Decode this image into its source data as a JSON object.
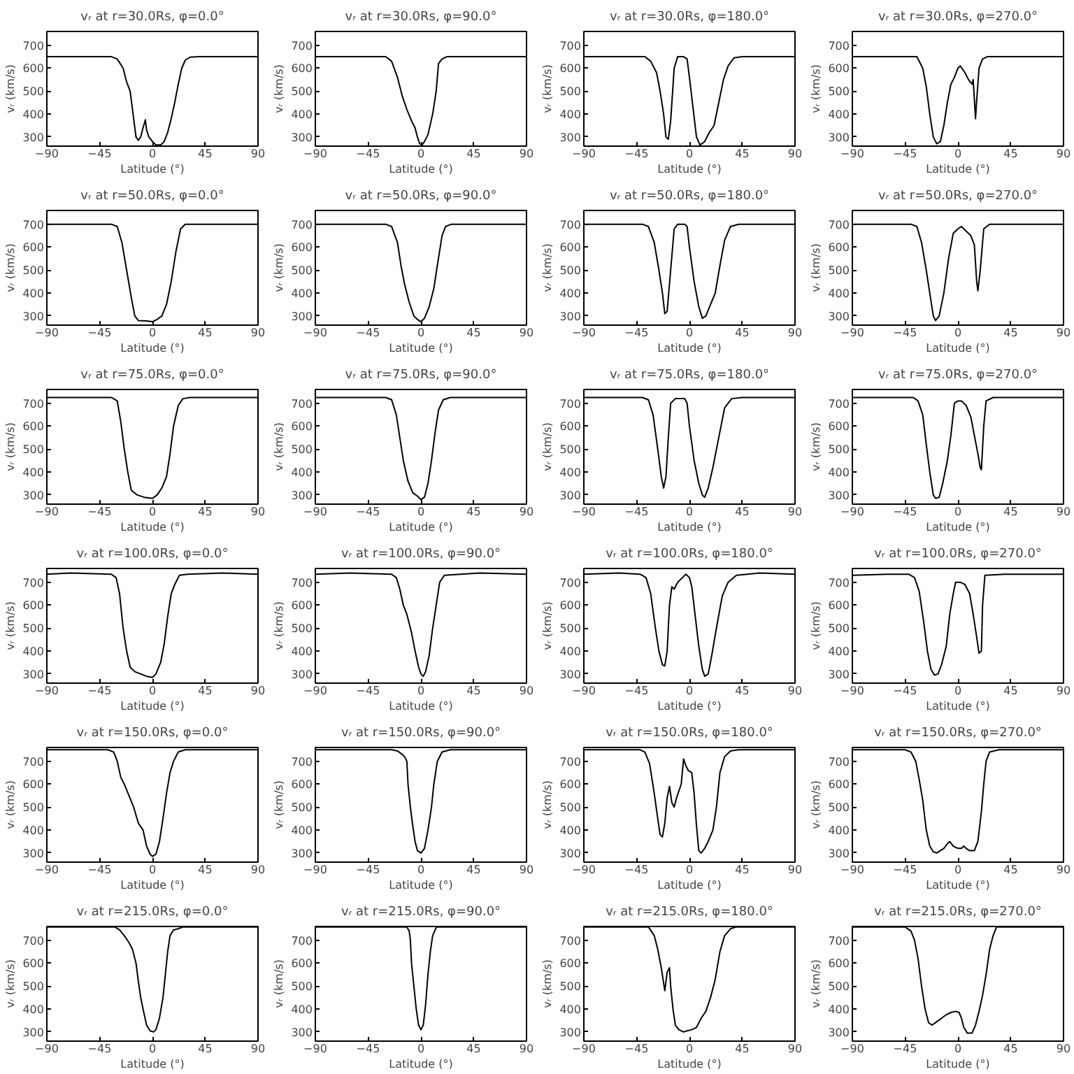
{
  "chart_data": [
    {
      "type": "line",
      "title": "vᵣ at r=30.0Rs, φ=0.0°",
      "xlabel": "Latitude (°)",
      "ylabel": "vᵣ (km/s)",
      "color": "#000000",
      "xlim": [
        -90,
        90
      ],
      "ylim": [
        260,
        760
      ],
      "xticks": [
        -90,
        -45,
        0,
        45,
        90
      ],
      "yticks": [
        300,
        400,
        500,
        600,
        700
      ],
      "x": [
        -90,
        -35,
        -30,
        -25,
        -22,
        -19,
        -16,
        -14,
        -12,
        -10,
        -8,
        -6,
        -5,
        -3,
        0,
        3,
        7,
        10,
        13,
        16,
        19,
        22,
        25,
        28,
        32,
        40,
        90
      ],
      "values": [
        650,
        650,
        640,
        600,
        540,
        500,
        380,
        300,
        285,
        300,
        340,
        375,
        330,
        300,
        280,
        265,
        265,
        280,
        320,
        380,
        450,
        530,
        600,
        635,
        648,
        650,
        650
      ]
    },
    {
      "type": "line",
      "title": "vᵣ at r=30.0Rs, φ=90.0°",
      "xlabel": "Latitude (°)",
      "ylabel": "vᵣ (km/s)",
      "color": "#000000",
      "xlim": [
        -90,
        90
      ],
      "ylim": [
        260,
        760
      ],
      "xticks": [
        -90,
        -45,
        0,
        45,
        90
      ],
      "yticks": [
        300,
        400,
        500,
        600,
        700
      ],
      "x": [
        -90,
        -30,
        -25,
        -20,
        -16,
        -12,
        -8,
        -5,
        -3,
        -1,
        1,
        3,
        6,
        10,
        13,
        15,
        18,
        22,
        90
      ],
      "values": [
        650,
        650,
        630,
        560,
        480,
        420,
        370,
        340,
        300,
        270,
        265,
        280,
        310,
        400,
        500,
        620,
        640,
        650,
        650
      ]
    },
    {
      "type": "line",
      "title": "vᵣ at r=30.0Rs, φ=180.0°",
      "xlabel": "Latitude (°)",
      "ylabel": "vᵣ (km/s)",
      "color": "#000000",
      "xlim": [
        -90,
        90
      ],
      "ylim": [
        260,
        760
      ],
      "xticks": [
        -90,
        -45,
        0,
        45,
        90
      ],
      "yticks": [
        300,
        400,
        500,
        600,
        700
      ],
      "x": [
        -90,
        -38,
        -33,
        -28,
        -25,
        -22,
        -20,
        -18,
        -16,
        -13,
        -10,
        -5,
        -2,
        0,
        3,
        6,
        9,
        13,
        17,
        21,
        25,
        29,
        33,
        38,
        45,
        90
      ],
      "values": [
        650,
        650,
        630,
        580,
        500,
        400,
        300,
        290,
        370,
        600,
        650,
        650,
        640,
        560,
        430,
        300,
        265,
        280,
        320,
        350,
        450,
        550,
        610,
        645,
        650,
        650
      ]
    },
    {
      "type": "line",
      "title": "vᵣ at r=30.0Rs, φ=270.0°",
      "xlabel": "Latitude (°)",
      "ylabel": "vᵣ (km/s)",
      "color": "#000000",
      "xlim": [
        -90,
        90
      ],
      "ylim": [
        260,
        760
      ],
      "xticks": [
        -90,
        -45,
        0,
        45,
        90
      ],
      "yticks": [
        300,
        400,
        500,
        600,
        700
      ],
      "x": [
        -90,
        -35,
        -30,
        -27,
        -24,
        -21,
        -18,
        -15,
        -12,
        -9,
        -6,
        -3,
        0,
        2,
        6,
        9,
        12,
        13,
        15,
        16,
        18,
        21,
        25,
        90
      ],
      "values": [
        650,
        650,
        600,
        520,
        400,
        300,
        270,
        280,
        350,
        450,
        530,
        560,
        600,
        610,
        580,
        550,
        530,
        550,
        380,
        460,
        600,
        640,
        650,
        650
      ]
    },
    {
      "type": "line",
      "title": "vᵣ at r=50.0Rs, φ=0.0°",
      "xlabel": "Latitude (°)",
      "ylabel": "vᵣ (km/s)",
      "color": "#000000",
      "xlim": [
        -90,
        90
      ],
      "ylim": [
        260,
        760
      ],
      "xticks": [
        -90,
        -45,
        0,
        45,
        90
      ],
      "yticks": [
        300,
        400,
        500,
        600,
        700
      ],
      "x": [
        -90,
        -35,
        -30,
        -26,
        -22,
        -18,
        -15,
        -12,
        -5,
        0,
        4,
        8,
        12,
        16,
        20,
        24,
        28,
        90
      ],
      "values": [
        700,
        700,
        690,
        620,
        500,
        380,
        300,
        280,
        278,
        275,
        285,
        300,
        350,
        450,
        580,
        680,
        700,
        700
      ]
    },
    {
      "type": "line",
      "title": "vᵣ at r=50.0Rs, φ=90.0°",
      "xlabel": "Latitude (°)",
      "ylabel": "vᵣ (km/s)",
      "color": "#000000",
      "xlim": [
        -90,
        90
      ],
      "ylim": [
        260,
        760
      ],
      "xticks": [
        -90,
        -45,
        0,
        45,
        90
      ],
      "yticks": [
        300,
        400,
        500,
        600,
        700
      ],
      "x": [
        -90,
        -30,
        -25,
        -20,
        -17,
        -14,
        -10,
        -6,
        -3,
        0,
        3,
        7,
        11,
        14,
        18,
        21,
        26,
        90
      ],
      "values": [
        700,
        700,
        690,
        620,
        520,
        440,
        360,
        300,
        285,
        275,
        290,
        340,
        420,
        520,
        650,
        690,
        700,
        700
      ]
    },
    {
      "type": "line",
      "title": "vᵣ at r=50.0Rs, φ=180.0°",
      "xlabel": "Latitude (°)",
      "ylabel": "vᵣ (km/s)",
      "color": "#000000",
      "xlim": [
        -90,
        90
      ],
      "ylim": [
        260,
        760
      ],
      "xticks": [
        -90,
        -45,
        0,
        45,
        90
      ],
      "yticks": [
        300,
        400,
        500,
        600,
        700
      ],
      "x": [
        -90,
        -40,
        -35,
        -30,
        -26,
        -23,
        -21,
        -19,
        -16,
        -13,
        -10,
        -4,
        -2,
        0,
        4,
        8,
        11,
        14,
        18,
        22,
        26,
        30,
        35,
        42,
        90
      ],
      "values": [
        700,
        700,
        690,
        620,
        500,
        400,
        310,
        320,
        500,
        680,
        700,
        700,
        690,
        600,
        450,
        340,
        290,
        300,
        350,
        400,
        520,
        630,
        690,
        700,
        700
      ]
    },
    {
      "type": "line",
      "title": "vᵣ at r=50.0Rs, φ=270.0°",
      "xlabel": "Latitude (°)",
      "ylabel": "vᵣ (km/s)",
      "color": "#000000",
      "xlim": [
        -90,
        90
      ],
      "ylim": [
        260,
        760
      ],
      "xticks": [
        -90,
        -45,
        0,
        45,
        90
      ],
      "yticks": [
        300,
        400,
        500,
        600,
        700
      ],
      "x": [
        -90,
        -40,
        -35,
        -31,
        -27,
        -24,
        -21,
        -19,
        -16,
        -12,
        -8,
        -4,
        0,
        3,
        7,
        11,
        14,
        16,
        17,
        19,
        22,
        27,
        90
      ],
      "values": [
        700,
        700,
        690,
        620,
        500,
        400,
        300,
        280,
        300,
        400,
        550,
        660,
        680,
        690,
        670,
        650,
        610,
        450,
        410,
        500,
        680,
        700,
        700
      ]
    },
    {
      "type": "line",
      "title": "vᵣ at r=75.0Rs, φ=0.0°",
      "xlabel": "Latitude (°)",
      "ylabel": "vᵣ (km/s)",
      "color": "#000000",
      "xlim": [
        -90,
        90
      ],
      "ylim": [
        260,
        760
      ],
      "xticks": [
        -90,
        -45,
        0,
        45,
        90
      ],
      "yticks": [
        300,
        400,
        500,
        600,
        700
      ],
      "x": [
        -90,
        -35,
        -30,
        -27,
        -24,
        -21,
        -18,
        -13,
        -7,
        0,
        4,
        8,
        12,
        15,
        18,
        22,
        26,
        32,
        90
      ],
      "values": [
        725,
        725,
        710,
        620,
        500,
        400,
        320,
        300,
        290,
        285,
        300,
        330,
        380,
        480,
        600,
        690,
        720,
        725,
        725
      ]
    },
    {
      "type": "line",
      "title": "vᵣ at r=75.0Rs, φ=90.0°",
      "xlabel": "Latitude (°)",
      "ylabel": "vᵣ (km/s)",
      "color": "#000000",
      "xlim": [
        -90,
        90
      ],
      "ylim": [
        260,
        760
      ],
      "xticks": [
        -90,
        -45,
        0,
        45,
        90
      ],
      "yticks": [
        300,
        400,
        500,
        600,
        700
      ],
      "x": [
        -90,
        -30,
        -25,
        -21,
        -18,
        -15,
        -11,
        -7,
        -3,
        0,
        3,
        6,
        9,
        12,
        15,
        19,
        25,
        90
      ],
      "values": [
        725,
        725,
        715,
        650,
        550,
        450,
        360,
        310,
        295,
        280,
        290,
        350,
        450,
        570,
        670,
        715,
        725,
        725
      ]
    },
    {
      "type": "line",
      "title": "vᵣ at r=75.0Rs, φ=180.0°",
      "xlabel": "Latitude (°)",
      "ylabel": "vᵣ (km/s)",
      "color": "#000000",
      "xlim": [
        -90,
        90
      ],
      "ylim": [
        260,
        760
      ],
      "xticks": [
        -90,
        -45,
        0,
        45,
        90
      ],
      "yticks": [
        300,
        400,
        500,
        600,
        700
      ],
      "x": [
        -90,
        -40,
        -35,
        -31,
        -27,
        -24,
        -22,
        -20,
        -18,
        -16,
        -12,
        -4,
        -2,
        0,
        4,
        8,
        11,
        13,
        16,
        20,
        25,
        30,
        36,
        45,
        90
      ],
      "values": [
        725,
        725,
        715,
        650,
        500,
        380,
        330,
        380,
        550,
        700,
        720,
        720,
        700,
        600,
        450,
        350,
        300,
        290,
        330,
        420,
        550,
        680,
        720,
        725,
        725
      ]
    },
    {
      "type": "line",
      "title": "vᵣ at r=75.0Rs, φ=270.0°",
      "xlabel": "Latitude (°)",
      "ylabel": "vᵣ (km/s)",
      "color": "#000000",
      "xlim": [
        -90,
        90
      ],
      "ylim": [
        260,
        760
      ],
      "xticks": [
        -90,
        -45,
        0,
        45,
        90
      ],
      "yticks": [
        300,
        400,
        500,
        600,
        700
      ],
      "x": [
        -90,
        -38,
        -34,
        -30,
        -27,
        -24,
        -21,
        -19,
        -16,
        -13,
        -9,
        -6,
        -3,
        0,
        3,
        7,
        11,
        14,
        17,
        19,
        20,
        22,
        24,
        30,
        90
      ],
      "values": [
        725,
        725,
        710,
        650,
        520,
        400,
        300,
        285,
        290,
        350,
        450,
        560,
        700,
        710,
        710,
        690,
        640,
        560,
        480,
        420,
        410,
        600,
        710,
        725,
        725
      ]
    },
    {
      "type": "line",
      "title": "vᵣ at r=100.0Rs, φ=0.0°",
      "xlabel": "Latitude (°)",
      "ylabel": "vᵣ (km/s)",
      "color": "#000000",
      "xlim": [
        -90,
        90
      ],
      "ylim": [
        260,
        760
      ],
      "xticks": [
        -90,
        -45,
        0,
        45,
        90
      ],
      "yticks": [
        300,
        400,
        500,
        600,
        700
      ],
      "x": [
        -90,
        -70,
        -35,
        -31,
        -28,
        -25,
        -22,
        -19,
        -15,
        -10,
        -5,
        0,
        3,
        7,
        10,
        13,
        16,
        19,
        23,
        30,
        60,
        90
      ],
      "values": [
        735,
        740,
        735,
        720,
        650,
        500,
        400,
        330,
        310,
        300,
        290,
        285,
        300,
        350,
        430,
        550,
        650,
        690,
        730,
        735,
        740,
        735
      ]
    },
    {
      "type": "line",
      "title": "vᵣ at r=100.0Rs, φ=90.0°",
      "xlabel": "Latitude (°)",
      "ylabel": "vᵣ (km/s)",
      "color": "#000000",
      "xlim": [
        -90,
        90
      ],
      "ylim": [
        260,
        760
      ],
      "xticks": [
        -90,
        -45,
        0,
        45,
        90
      ],
      "yticks": [
        300,
        400,
        500,
        600,
        700
      ],
      "x": [
        -90,
        -60,
        -25,
        -21,
        -18,
        -15,
        -12,
        -8,
        -5,
        -2,
        0,
        2,
        4,
        7,
        10,
        13,
        16,
        20,
        50,
        90
      ],
      "values": [
        735,
        740,
        735,
        720,
        670,
        600,
        560,
        480,
        400,
        330,
        300,
        290,
        310,
        380,
        500,
        600,
        700,
        730,
        740,
        735
      ]
    },
    {
      "type": "line",
      "title": "vᵣ at r=100.0Rs, φ=180.0°",
      "xlabel": "Latitude (°)",
      "ylabel": "vᵣ (km/s)",
      "color": "#000000",
      "xlim": [
        -90,
        90
      ],
      "ylim": [
        260,
        760
      ],
      "xticks": [
        -90,
        -45,
        0,
        45,
        90
      ],
      "yticks": [
        300,
        400,
        500,
        600,
        700
      ],
      "x": [
        -90,
        -60,
        -42,
        -37,
        -33,
        -29,
        -26,
        -23,
        -21,
        -19,
        -17,
        -15,
        -13,
        -10,
        -6,
        -3,
        0,
        2,
        5,
        8,
        11,
        13,
        16,
        19,
        23,
        28,
        33,
        40,
        60,
        90
      ],
      "values": [
        735,
        740,
        735,
        720,
        650,
        500,
        400,
        340,
        335,
        400,
        600,
        680,
        670,
        700,
        720,
        735,
        720,
        680,
        550,
        420,
        320,
        290,
        300,
        380,
        500,
        640,
        700,
        730,
        740,
        735
      ]
    },
    {
      "type": "line",
      "title": "vᵣ at r=100.0Rs, φ=270.0°",
      "xlabel": "Latitude (°)",
      "ylabel": "vᵣ (km/s)",
      "color": "#000000",
      "xlim": [
        -90,
        90
      ],
      "ylim": [
        260,
        760
      ],
      "xticks": [
        -90,
        -45,
        0,
        45,
        90
      ],
      "yticks": [
        300,
        400,
        500,
        600,
        700
      ],
      "x": [
        -90,
        -60,
        -42,
        -37,
        -33,
        -29,
        -26,
        -23,
        -20,
        -17,
        -14,
        -10,
        -7,
        -4,
        -2,
        2,
        6,
        10,
        13,
        16,
        18,
        20,
        21,
        23,
        40,
        90
      ],
      "values": [
        730,
        735,
        735,
        720,
        660,
        520,
        400,
        320,
        295,
        300,
        340,
        420,
        560,
        650,
        700,
        700,
        690,
        650,
        560,
        460,
        390,
        400,
        600,
        730,
        735,
        735
      ]
    },
    {
      "type": "line",
      "title": "vᵣ at r=150.0Rs, φ=0.0°",
      "xlabel": "Latitude (°)",
      "ylabel": "vᵣ (km/s)",
      "color": "#000000",
      "xlim": [
        -90,
        90
      ],
      "ylim": [
        260,
        760
      ],
      "xticks": [
        -90,
        -45,
        0,
        45,
        90
      ],
      "yticks": [
        300,
        400,
        500,
        600,
        700
      ],
      "x": [
        -90,
        -38,
        -33,
        -30,
        -27,
        -24,
        -20,
        -16,
        -12,
        -8,
        -5,
        -2,
        0,
        3,
        6,
        9,
        12,
        15,
        18,
        22,
        28,
        90
      ],
      "values": [
        750,
        750,
        740,
        700,
        630,
        600,
        550,
        500,
        430,
        400,
        330,
        295,
        285,
        295,
        350,
        450,
        560,
        650,
        700,
        740,
        750,
        750
      ]
    },
    {
      "type": "line",
      "title": "vᵣ at r=150.0Rs, φ=90.0°",
      "xlabel": "Latitude (°)",
      "ylabel": "vᵣ (km/s)",
      "color": "#000000",
      "xlim": [
        -90,
        90
      ],
      "ylim": [
        260,
        760
      ],
      "xticks": [
        -90,
        -45,
        0,
        45,
        90
      ],
      "yticks": [
        300,
        400,
        500,
        600,
        700
      ],
      "x": [
        -90,
        -25,
        -20,
        -16,
        -14,
        -12,
        -11,
        -9,
        -7,
        -5,
        -3,
        0,
        3,
        6,
        9,
        11,
        14,
        18,
        25,
        90
      ],
      "values": [
        750,
        750,
        745,
        730,
        720,
        700,
        600,
        500,
        420,
        350,
        310,
        300,
        320,
        400,
        500,
        600,
        700,
        740,
        750,
        750
      ]
    },
    {
      "type": "line",
      "title": "vᵣ at r=150.0Rs, φ=180.0°",
      "xlabel": "Latitude (°)",
      "ylabel": "vᵣ (km/s)",
      "color": "#000000",
      "xlim": [
        -90,
        90
      ],
      "ylim": [
        260,
        760
      ],
      "xticks": [
        -90,
        -45,
        0,
        45,
        90
      ],
      "yticks": [
        300,
        400,
        500,
        600,
        700
      ],
      "x": [
        -90,
        -42,
        -38,
        -34,
        -30,
        -27,
        -25,
        -23,
        -21,
        -19,
        -17,
        -15,
        -13,
        -11,
        -9,
        -7,
        -5,
        -3,
        -1,
        2,
        4,
        6,
        8,
        10,
        13,
        16,
        20,
        23,
        26,
        30,
        35,
        42,
        90
      ],
      "values": [
        750,
        750,
        740,
        690,
        560,
        450,
        380,
        370,
        430,
        540,
        590,
        520,
        500,
        540,
        570,
        600,
        710,
        680,
        660,
        650,
        560,
        420,
        310,
        300,
        320,
        350,
        400,
        500,
        650,
        720,
        745,
        750,
        750
      ]
    },
    {
      "type": "line",
      "title": "vᵣ at r=150.0Rs, φ=270.0°",
      "xlabel": "Latitude (°)",
      "ylabel": "vᵣ (km/s)",
      "color": "#000000",
      "xlim": [
        -90,
        90
      ],
      "ylim": [
        260,
        760
      ],
      "xticks": [
        -90,
        -45,
        0,
        45,
        90
      ],
      "yticks": [
        300,
        400,
        500,
        600,
        700
      ],
      "x": [
        -90,
        -45,
        -40,
        -36,
        -33,
        -30,
        -27,
        -24,
        -21,
        -18,
        -15,
        -12,
        -9,
        -7,
        -4,
        0,
        3,
        5,
        7,
        10,
        14,
        17,
        20,
        22,
        24,
        27,
        35,
        90
      ],
      "values": [
        750,
        750,
        740,
        700,
        620,
        530,
        400,
        330,
        305,
        300,
        310,
        320,
        340,
        350,
        330,
        320,
        320,
        330,
        320,
        310,
        310,
        350,
        480,
        600,
        700,
        740,
        750,
        750
      ]
    },
    {
      "type": "line",
      "title": "vᵣ at r=215.0Rs, φ=0.0°",
      "xlabel": "Latitude (°)",
      "ylabel": "vᵣ (km/s)",
      "color": "#000000",
      "xlim": [
        -90,
        90
      ],
      "ylim": [
        260,
        760
      ],
      "xticks": [
        -90,
        -45,
        0,
        45,
        90
      ],
      "yticks": [
        300,
        400,
        500,
        600,
        700
      ],
      "x": [
        -90,
        -32,
        -28,
        -24,
        -20,
        -17,
        -14,
        -12,
        -10,
        -8,
        -5,
        -2,
        1,
        3,
        6,
        9,
        11,
        13,
        15,
        18,
        22,
        26,
        90
      ],
      "values": [
        758,
        758,
        745,
        720,
        690,
        660,
        600,
        520,
        450,
        400,
        330,
        305,
        300,
        310,
        360,
        450,
        550,
        650,
        720,
        745,
        750,
        758,
        758
      ]
    },
    {
      "type": "line",
      "title": "vᵣ at r=215.0Rs, φ=90.0°",
      "xlabel": "Latitude (°)",
      "ylabel": "vᵣ (km/s)",
      "color": "#000000",
      "xlim": [
        -90,
        90
      ],
      "ylim": [
        260,
        760
      ],
      "xticks": [
        -90,
        -45,
        0,
        45,
        90
      ],
      "yticks": [
        300,
        400,
        500,
        600,
        700
      ],
      "x": [
        -90,
        -12,
        -10,
        -9,
        -8,
        -6,
        -4,
        -2,
        0,
        2,
        4,
        6,
        8,
        10,
        13,
        15,
        90
      ],
      "values": [
        758,
        758,
        740,
        700,
        600,
        500,
        400,
        330,
        310,
        330,
        420,
        550,
        650,
        720,
        755,
        758,
        758
      ]
    },
    {
      "type": "line",
      "title": "vᵣ at r=215.0Rs, φ=180.0°",
      "xlabel": "Latitude (°)",
      "ylabel": "vᵣ (km/s)",
      "color": "#000000",
      "xlim": [
        -90,
        90
      ],
      "ylim": [
        260,
        760
      ],
      "xticks": [
        -90,
        -45,
        0,
        45,
        90
      ],
      "yticks": [
        300,
        400,
        500,
        600,
        700
      ],
      "x": [
        -90,
        -35,
        -30,
        -27,
        -24,
        -21,
        -19,
        -17,
        -16,
        -14,
        -12,
        -9,
        -5,
        -2,
        2,
        6,
        10,
        14,
        18,
        22,
        26,
        30,
        35,
        40,
        90
      ],
      "values": [
        758,
        758,
        720,
        660,
        580,
        480,
        560,
        580,
        500,
        400,
        330,
        310,
        300,
        305,
        310,
        320,
        360,
        390,
        450,
        530,
        650,
        720,
        750,
        758,
        758
      ]
    },
    {
      "type": "line",
      "title": "vᵣ at r=215.0Rs, φ=270.0°",
      "xlabel": "Latitude (°)",
      "ylabel": "vᵣ (km/s)",
      "color": "#000000",
      "xlim": [
        -90,
        90
      ],
      "ylim": [
        260,
        760
      ],
      "xticks": [
        -90,
        -45,
        0,
        45,
        90
      ],
      "yticks": [
        300,
        400,
        500,
        600,
        700
      ],
      "x": [
        -90,
        -45,
        -40,
        -37,
        -34,
        -31,
        -28,
        -25,
        -22,
        -18,
        -14,
        -10,
        -6,
        -2,
        1,
        3,
        5,
        8,
        12,
        15,
        18,
        21,
        24,
        27,
        30,
        33,
        90
      ],
      "values": [
        758,
        758,
        740,
        700,
        620,
        500,
        400,
        340,
        330,
        345,
        360,
        375,
        385,
        390,
        385,
        360,
        320,
        295,
        295,
        330,
        390,
        460,
        550,
        660,
        720,
        758,
        758
      ]
    }
  ]
}
